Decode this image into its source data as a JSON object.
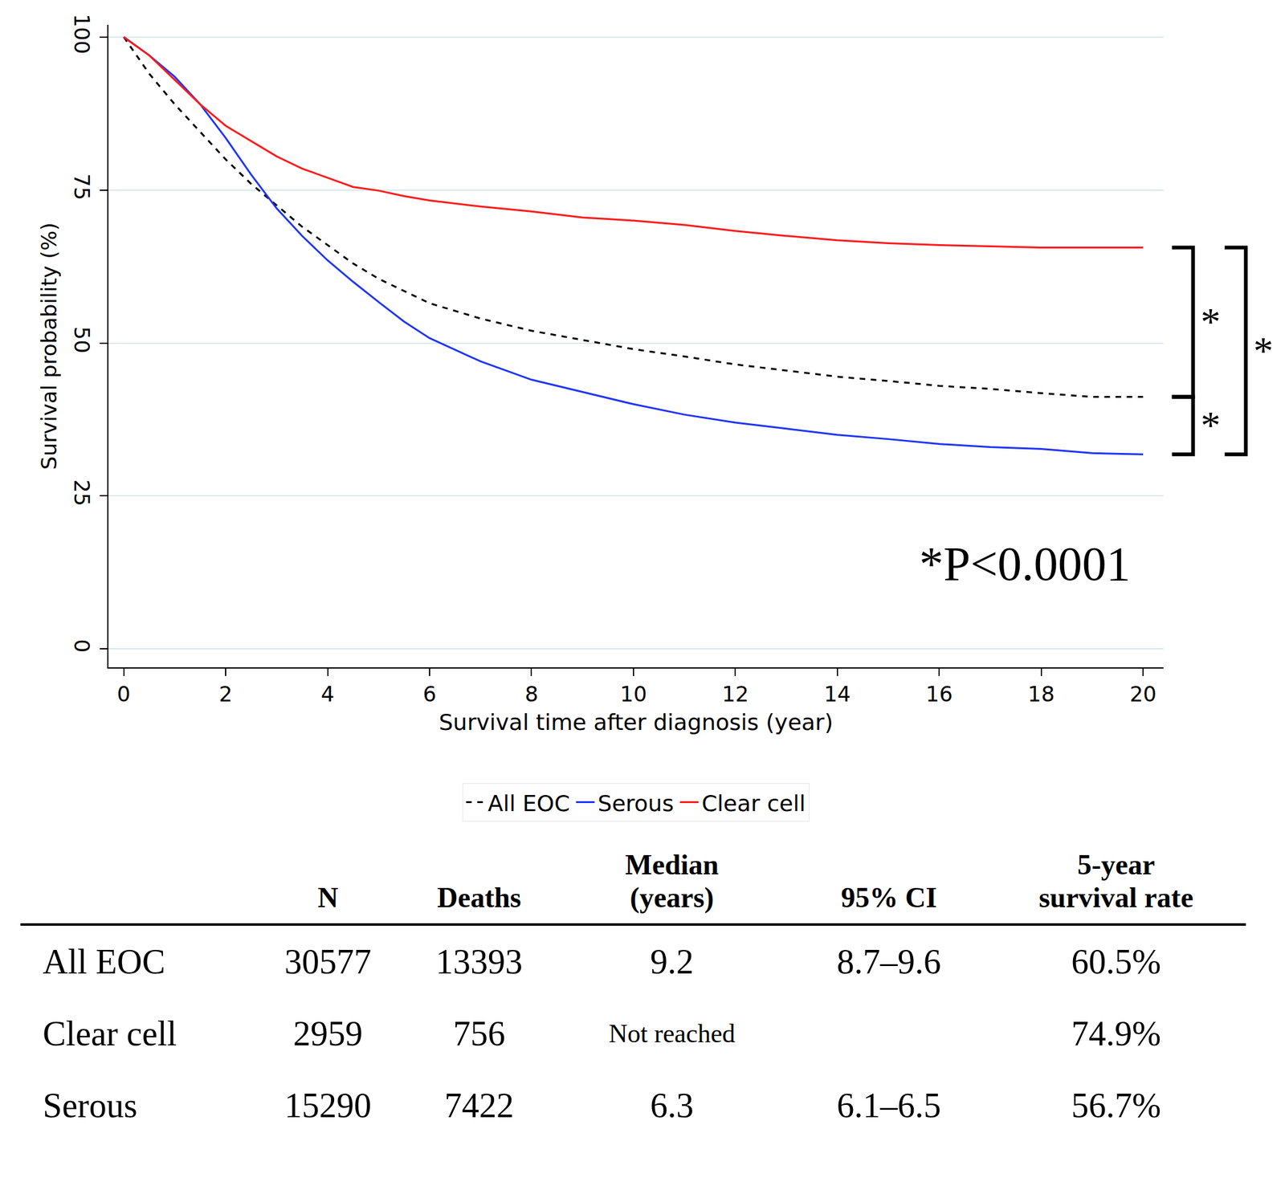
{
  "chart_data": {
    "type": "line",
    "x_label": "Survival time after diagnosis (year)",
    "y_label": "Survival probability (%)",
    "x": [
      0,
      0.5,
      1,
      1.5,
      2,
      2.5,
      3,
      3.5,
      4,
      4.5,
      5,
      5.5,
      6,
      7,
      8,
      9,
      10,
      11,
      12,
      13,
      14,
      15,
      16,
      17,
      18,
      19,
      20
    ],
    "series": [
      {
        "name": "All EOC",
        "color": "#000000",
        "line_style": "dashed",
        "values": [
          100,
          94,
          89,
          84.5,
          80,
          76,
          72.5,
          69,
          66,
          63,
          60.5,
          58.5,
          56.5,
          54,
          52,
          50.5,
          49,
          47.8,
          46.5,
          45.5,
          44.5,
          43.8,
          43,
          42.5,
          41.8,
          41.2,
          41.2
        ]
      },
      {
        "name": "Serous",
        "color": "#1f35f5",
        "line_style": "solid",
        "values": [
          100,
          97,
          93.5,
          89,
          83.5,
          77.5,
          72,
          67.5,
          63.5,
          60,
          56.7,
          53.5,
          50.8,
          47,
          44,
          42,
          40,
          38.3,
          37,
          36,
          35,
          34.3,
          33.5,
          33,
          32.7,
          32,
          31.8
        ]
      },
      {
        "name": "Clear cell",
        "color": "#ff1a1a",
        "line_style": "solid",
        "values": [
          100,
          97,
          93,
          89,
          85.5,
          83,
          80.5,
          78.5,
          77,
          75.5,
          74.9,
          74,
          73.3,
          72.3,
          71.5,
          70.5,
          70,
          69.3,
          68.3,
          67.5,
          66.8,
          66.3,
          66,
          65.8,
          65.6,
          65.6,
          65.6
        ]
      }
    ],
    "xlim": [
      -0.3,
      20.4
    ],
    "xticks": [
      0,
      2,
      4,
      6,
      8,
      10,
      12,
      14,
      16,
      18,
      20
    ],
    "ylim": [
      -3,
      102
    ],
    "yticks": [
      0,
      25,
      50,
      75,
      100
    ],
    "grid": true,
    "legend": "bottom",
    "comparisons": [
      {
        "series": [
          "Clear cell",
          "All EOC"
        ],
        "label": "*"
      },
      {
        "series": [
          "All EOC",
          "Serous"
        ],
        "label": "*"
      },
      {
        "series": [
          "Clear cell",
          "Serous"
        ],
        "label": "*"
      }
    ],
    "annotation": "*P<0.0001"
  },
  "table": {
    "header": [
      [],
      [
        "N"
      ],
      [
        "Deaths"
      ],
      [
        "Median",
        "(years)"
      ],
      [
        "95% CI"
      ],
      [
        "5-year",
        "survival rate"
      ]
    ],
    "rows": [
      [
        "All EOC",
        30577,
        13393,
        9.2,
        "8.7–9.6",
        "60.5%"
      ],
      [
        "Clear cell",
        2959,
        756,
        "Not reached",
        null,
        "74.9%"
      ],
      [
        "Serous",
        15290,
        7422,
        6.3,
        "6.1–6.5",
        "56.7%"
      ]
    ]
  }
}
